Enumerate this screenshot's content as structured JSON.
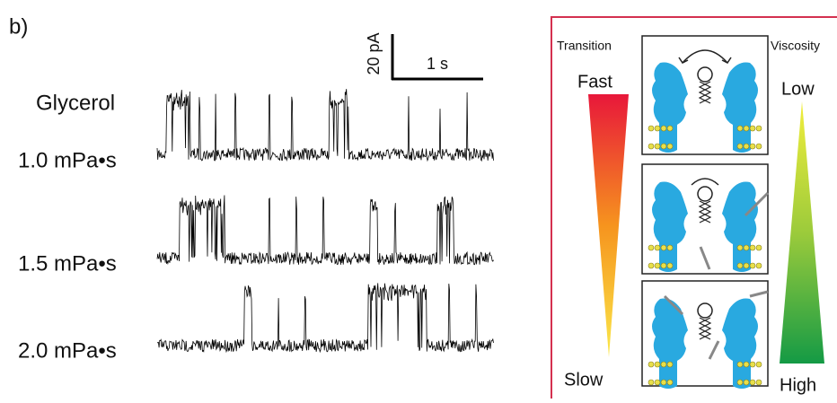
{
  "panel_label": "b)",
  "scale_bar": {
    "current": "20 pA",
    "time": "1 s"
  },
  "traces": {
    "title": "Glycerol",
    "labels": [
      "1.0 mPa•s",
      "1.5 mPa•s",
      "2.0 mPa•s"
    ]
  },
  "legend": {
    "transition": {
      "title": "Transition",
      "top": "Fast",
      "bottom": "Slow"
    },
    "viscosity": {
      "title": "Viscosity",
      "top": "Low",
      "bottom": "High"
    }
  }
}
